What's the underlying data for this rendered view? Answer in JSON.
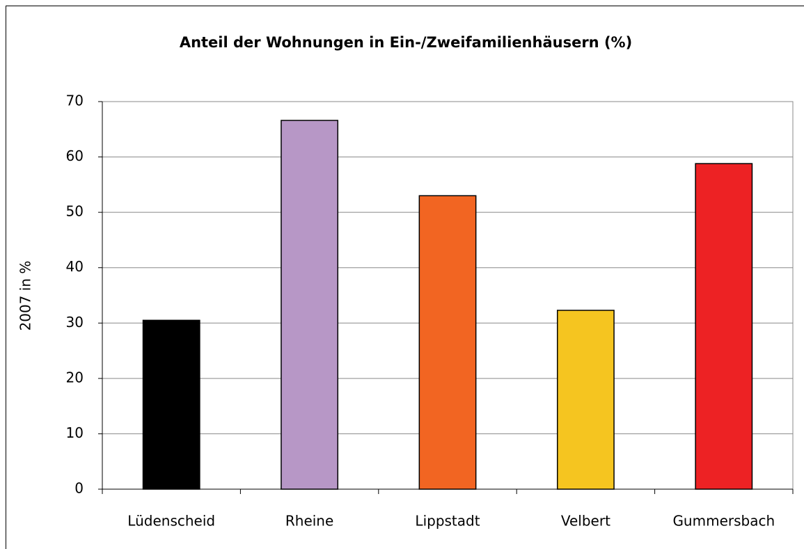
{
  "chart_data": {
    "type": "bar",
    "title": "Anteil der Wohnungen in Ein-/Zweifamilienhäusern (%)",
    "ylabel": "2007 in %",
    "categories": [
      "Lüdenscheid",
      "Rheine",
      "Lippstadt",
      "Velbert",
      "Gummersbach"
    ],
    "values": [
      30.5,
      66.6,
      53.0,
      32.3,
      58.8
    ],
    "colors": [
      "#000000",
      "#b797c6",
      "#f26522",
      "#f5c520",
      "#ed2224"
    ],
    "ylim": [
      0,
      70
    ],
    "yticks": [
      0,
      10,
      20,
      30,
      40,
      50,
      60,
      70
    ],
    "grid": true
  }
}
